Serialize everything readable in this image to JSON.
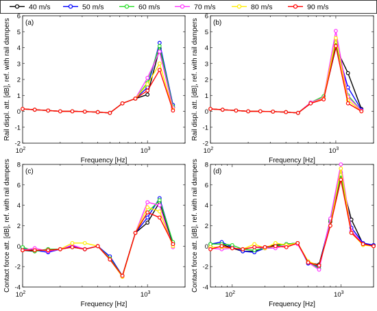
{
  "legend": {
    "entries": [
      {
        "label": "40 m/s",
        "color": "#000000"
      },
      {
        "label": "50 m/s",
        "color": "#0000ff"
      },
      {
        "label": "60 m/s",
        "color": "#22dd22"
      },
      {
        "label": "70 m/s",
        "color": "#ff33ff"
      },
      {
        "label": "80 m/s",
        "color": "#ffee00"
      },
      {
        "label": "90 m/s",
        "color": "#ff0000"
      }
    ]
  },
  "chart_data": [
    {
      "type": "line",
      "panel_label": "(a)",
      "xscale": "log",
      "xlabel": "Frequency [Hz]",
      "ylabel": "Rail displ. att. [dB], ref. with rail dampers",
      "xlim": [
        100,
        2000
      ],
      "ylim": [
        -2,
        6
      ],
      "yticks": [
        -2,
        -1,
        0,
        1,
        2,
        3,
        4,
        5,
        6
      ],
      "xticks": [
        {
          "value": 100,
          "base": "10",
          "exp": "2"
        },
        {
          "value": 1000,
          "base": "10",
          "exp": "3"
        }
      ],
      "x": [
        100,
        125,
        160,
        200,
        250,
        315,
        400,
        500,
        630,
        800,
        1000,
        1250,
        1600
      ],
      "series": [
        {
          "name": "40 m/s",
          "values": [
            0.15,
            0.1,
            0.05,
            0.0,
            0.0,
            -0.02,
            -0.05,
            -0.1,
            0.5,
            0.8,
            1.05,
            3.95,
            0.25
          ]
        },
        {
          "name": "50 m/s",
          "values": [
            0.15,
            0.1,
            0.05,
            0.0,
            0.0,
            -0.02,
            -0.05,
            -0.1,
            0.5,
            0.8,
            1.5,
            4.3,
            0.4
          ]
        },
        {
          "name": "60 m/s",
          "values": [
            0.15,
            0.1,
            0.05,
            0.0,
            0.0,
            -0.02,
            -0.05,
            -0.1,
            0.5,
            0.8,
            1.8,
            4.1,
            0.3
          ]
        },
        {
          "name": "70 m/s",
          "values": [
            0.15,
            0.1,
            0.05,
            0.0,
            0.0,
            -0.02,
            -0.05,
            -0.1,
            0.5,
            0.8,
            2.1,
            3.75,
            0.2
          ]
        },
        {
          "name": "80 m/s",
          "values": [
            0.15,
            0.1,
            0.05,
            0.0,
            0.0,
            -0.02,
            -0.05,
            -0.1,
            0.5,
            0.8,
            1.7,
            3.0,
            0.1
          ]
        },
        {
          "name": "90 m/s",
          "values": [
            0.15,
            0.1,
            0.05,
            0.0,
            0.0,
            -0.02,
            -0.05,
            -0.1,
            0.5,
            0.8,
            1.3,
            2.6,
            0.05
          ]
        }
      ]
    },
    {
      "type": "line",
      "panel_label": "(b)",
      "xscale": "log",
      "xlabel": "Frequency [Hz]",
      "ylabel": "Rail displ. att. [dB], ref. with rail dampers",
      "xlim": [
        100,
        2000
      ],
      "ylim": [
        -2,
        6
      ],
      "yticks": [
        -2,
        -1,
        0,
        1,
        2,
        3,
        4,
        5,
        6
      ],
      "xticks": [
        {
          "value": 100,
          "base": "10",
          "exp": "2"
        },
        {
          "value": 1000,
          "base": "10",
          "exp": "3"
        }
      ],
      "x": [
        100,
        125,
        160,
        200,
        250,
        315,
        400,
        500,
        630,
        800,
        1000,
        1250,
        1600
      ],
      "series": [
        {
          "name": "40 m/s",
          "values": [
            0.15,
            0.1,
            0.05,
            0.0,
            0.0,
            -0.02,
            -0.05,
            -0.1,
            0.5,
            0.8,
            4.0,
            2.4,
            0.15
          ]
        },
        {
          "name": "50 m/s",
          "values": [
            0.15,
            0.1,
            0.05,
            0.0,
            0.0,
            -0.02,
            -0.05,
            -0.1,
            0.5,
            0.8,
            4.2,
            1.5,
            0.1
          ]
        },
        {
          "name": "60 m/s",
          "values": [
            0.15,
            0.1,
            0.05,
            0.0,
            0.0,
            -0.02,
            -0.05,
            -0.1,
            0.55,
            0.95,
            4.35,
            1.0,
            0.05
          ]
        },
        {
          "name": "70 m/s",
          "values": [
            0.15,
            0.1,
            0.05,
            0.0,
            0.0,
            -0.02,
            -0.05,
            -0.1,
            0.55,
            0.85,
            5.05,
            0.9,
            0.05
          ]
        },
        {
          "name": "80 m/s",
          "values": [
            0.15,
            0.1,
            0.05,
            0.0,
            0.0,
            -0.02,
            -0.05,
            -0.1,
            0.5,
            0.8,
            4.6,
            0.7,
            0.0
          ]
        },
        {
          "name": "90 m/s",
          "values": [
            0.15,
            0.1,
            0.05,
            0.0,
            0.0,
            -0.02,
            -0.05,
            -0.1,
            0.5,
            0.75,
            4.1,
            0.5,
            0.0
          ]
        }
      ]
    },
    {
      "type": "line",
      "panel_label": "(c)",
      "xscale": "log",
      "xlabel": "Frequency [Hz]",
      "ylabel": "Contact force att. [dB], ref. with rail dampers",
      "xlim": [
        100,
        2000
      ],
      "ylim": [
        -4,
        8
      ],
      "yticks": [
        -4,
        -2,
        0,
        2,
        4,
        6,
        8
      ],
      "xticks": [
        {
          "value": 100,
          "base": "10",
          "exp": "2"
        },
        {
          "value": 1000,
          "base": "10",
          "exp": "3"
        }
      ],
      "x": [
        100,
        125,
        160,
        200,
        250,
        315,
        400,
        500,
        630,
        800,
        1000,
        1250,
        1600
      ],
      "series": [
        {
          "name": "40 m/s",
          "values": [
            -0.4,
            -0.5,
            -0.3,
            -0.3,
            0.0,
            -0.3,
            0.0,
            -1.3,
            -2.9,
            1.3,
            2.3,
            4.3,
            0.2
          ]
        },
        {
          "name": "50 m/s",
          "values": [
            -0.2,
            -0.4,
            -0.6,
            -0.3,
            0.0,
            -0.3,
            0.0,
            -1.0,
            -2.9,
            1.3,
            2.8,
            4.7,
            0.3
          ]
        },
        {
          "name": "60 m/s",
          "values": [
            -0.1,
            -0.5,
            -0.3,
            -0.3,
            -0.1,
            -0.3,
            0.0,
            -1.2,
            -2.9,
            1.3,
            3.3,
            4.5,
            0.4
          ]
        },
        {
          "name": "70 m/s",
          "values": [
            -0.4,
            -0.2,
            -0.5,
            -0.3,
            0.1,
            -0.3,
            0.0,
            -1.3,
            -3.0,
            1.3,
            4.3,
            4.0,
            -0.1
          ]
        },
        {
          "name": "80 m/s",
          "values": [
            -0.4,
            -0.4,
            -0.4,
            -0.3,
            0.3,
            0.3,
            0.0,
            -1.3,
            -3.0,
            1.3,
            3.8,
            3.4,
            0.0
          ]
        },
        {
          "name": "90 m/s",
          "values": [
            -0.4,
            -0.4,
            -0.4,
            -0.3,
            -0.1,
            -0.3,
            0.0,
            -1.3,
            -2.9,
            1.3,
            3.3,
            2.8,
            0.2
          ]
        }
      ]
    },
    {
      "type": "line",
      "panel_label": "(d)",
      "xscale": "log",
      "xlabel": "Frequency [Hz]",
      "ylabel": "Contact force att. [dB], ref. with rail dampers",
      "xlim": [
        63,
        2000
      ],
      "ylim": [
        -4,
        8
      ],
      "yticks": [
        -4,
        -2,
        0,
        2,
        4,
        6,
        8
      ],
      "xticks": [
        {
          "value": 100,
          "base": "10",
          "exp": "2"
        },
        {
          "value": 1000,
          "base": "10",
          "exp": "3"
        }
      ],
      "x": [
        63,
        80,
        100,
        125,
        160,
        200,
        250,
        315,
        400,
        500,
        630,
        800,
        1000,
        1250,
        1600,
        2000
      ],
      "series": [
        {
          "name": "40 m/s",
          "values": [
            0.2,
            0.2,
            -0.2,
            -0.5,
            -0.5,
            -0.1,
            0.1,
            0.2,
            0.3,
            -1.6,
            -1.8,
            2.4,
            6.6,
            2.6,
            0.2,
            0.1
          ]
        },
        {
          "name": "50 m/s",
          "values": [
            0.2,
            0.4,
            -0.1,
            -0.5,
            -0.6,
            -0.2,
            0.0,
            0.2,
            0.3,
            -1.7,
            -2.0,
            2.6,
            7.2,
            1.8,
            0.3,
            0.1
          ]
        },
        {
          "name": "60 m/s",
          "values": [
            0.2,
            0.2,
            0.1,
            -0.3,
            -0.4,
            -0.2,
            0.0,
            0.2,
            0.3,
            -1.5,
            -2.2,
            2.5,
            7.0,
            1.4,
            0.2,
            0.0
          ]
        },
        {
          "name": "70 m/s",
          "values": [
            -0.2,
            -0.3,
            -0.2,
            -0.3,
            -0.1,
            -0.2,
            -0.2,
            0.1,
            0.2,
            -1.6,
            -2.3,
            2.7,
            8.0,
            1.5,
            0.2,
            0.0
          ]
        },
        {
          "name": "80 m/s",
          "values": [
            -0.1,
            -0.1,
            -0.2,
            -0.3,
            0.2,
            -0.2,
            0.3,
            0.1,
            0.3,
            -1.5,
            -1.9,
            2.0,
            7.6,
            1.3,
            0.1,
            0.0
          ]
        },
        {
          "name": "90 m/s",
          "values": [
            -0.3,
            0.0,
            -0.2,
            -0.3,
            -0.1,
            -0.1,
            0.0,
            -0.1,
            0.3,
            -1.6,
            -1.9,
            2.0,
            6.5,
            1.3,
            0.2,
            0.0
          ]
        }
      ]
    }
  ]
}
